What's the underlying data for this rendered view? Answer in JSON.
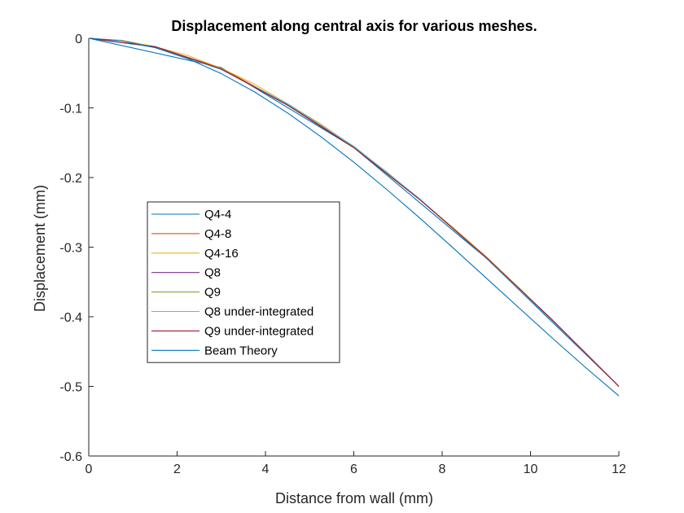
{
  "chart_data": {
    "type": "line",
    "title": "Displacement along central axis for various meshes.",
    "xlabel": "Distance from wall (mm)",
    "ylabel": "Displacement (mm)",
    "xlim": [
      0,
      12
    ],
    "ylim": [
      -0.6,
      0
    ],
    "xticks": [
      0,
      2,
      4,
      6,
      8,
      10,
      12
    ],
    "xtick_labels": [
      "0",
      "2",
      "4",
      "6",
      "8",
      "10",
      "12"
    ],
    "yticks": [
      0,
      -0.1,
      -0.2,
      -0.3,
      -0.4,
      -0.5,
      -0.6
    ],
    "ytick_labels": [
      "0",
      "-0.1",
      "-0.2",
      "-0.3",
      "-0.4",
      "-0.5",
      "-0.6"
    ],
    "grid": false,
    "legend_position": "center-left",
    "series": [
      {
        "name": "Q4-4",
        "color": "#0072BD",
        "x": [
          0,
          3,
          6,
          9,
          12
        ],
        "y": [
          0,
          -0.042,
          -0.157,
          -0.316,
          -0.5
        ]
      },
      {
        "name": "Q4-8",
        "color": "#D95319",
        "x": [
          0,
          1.5,
          3,
          4.5,
          6,
          7.5,
          9,
          10.5,
          12
        ],
        "y": [
          0,
          -0.012,
          -0.043,
          -0.095,
          -0.156,
          -0.232,
          -0.314,
          -0.405,
          -0.5
        ]
      },
      {
        "name": "Q4-16",
        "color": "#EDB120",
        "x": [
          0,
          0.75,
          1.5,
          2.25,
          3,
          3.75,
          4.5,
          5.25,
          6,
          6.75,
          7.5,
          8.25,
          9,
          9.75,
          10.5,
          11.25,
          12
        ],
        "y": [
          0,
          -0.003,
          -0.012,
          -0.025,
          -0.043,
          -0.066,
          -0.094,
          -0.123,
          -0.156,
          -0.192,
          -0.232,
          -0.272,
          -0.314,
          -0.359,
          -0.406,
          -0.452,
          -0.5
        ]
      },
      {
        "name": "Q8",
        "color": "#7E2F8E",
        "x": [
          0,
          1.5,
          3,
          4.5,
          6,
          7.5,
          9,
          10.5,
          12
        ],
        "y": [
          0,
          -0.012,
          -0.044,
          -0.096,
          -0.157,
          -0.232,
          -0.315,
          -0.405,
          -0.5
        ]
      },
      {
        "name": "Q9",
        "color": "#77AC30",
        "x": [
          0,
          1.5,
          3,
          4.5,
          6,
          7.5,
          9,
          10.5,
          12
        ],
        "y": [
          0,
          -0.012,
          -0.044,
          -0.096,
          -0.157,
          -0.232,
          -0.315,
          -0.405,
          -0.5
        ]
      },
      {
        "name": "Q8 under-integrated",
        "color": "#4DBEEE",
        "x": [
          0,
          1.5,
          3,
          4.5,
          6,
          7.5,
          9,
          10.5,
          12
        ],
        "y": [
          0,
          -0.013,
          -0.045,
          -0.094,
          -0.155,
          -0.231,
          -0.316,
          -0.406,
          -0.5
        ]
      },
      {
        "name": "Q9 under-integrated",
        "color": "#A2142F",
        "x": [
          0,
          1.5,
          3,
          4.5,
          6,
          7.5,
          9,
          10.5,
          12
        ],
        "y": [
          0,
          -0.012,
          -0.044,
          -0.096,
          -0.157,
          -0.232,
          -0.315,
          -0.405,
          -0.5
        ]
      },
      {
        "name": "Beam Theory",
        "color": "#0072BD",
        "x": [
          0,
          0.75,
          1.5,
          2.25,
          3,
          3.75,
          4.5,
          5.25,
          6,
          6.75,
          7.5,
          8.25,
          9,
          9.75,
          10.5,
          11.25,
          12
        ],
        "y": [
          0,
          -0.0035,
          -0.0135,
          -0.0295,
          -0.0508,
          -0.0769,
          -0.1072,
          -0.1411,
          -0.178,
          -0.2174,
          -0.2586,
          -0.3012,
          -0.3445,
          -0.3879,
          -0.431,
          -0.4731,
          -0.5137
        ]
      }
    ]
  }
}
